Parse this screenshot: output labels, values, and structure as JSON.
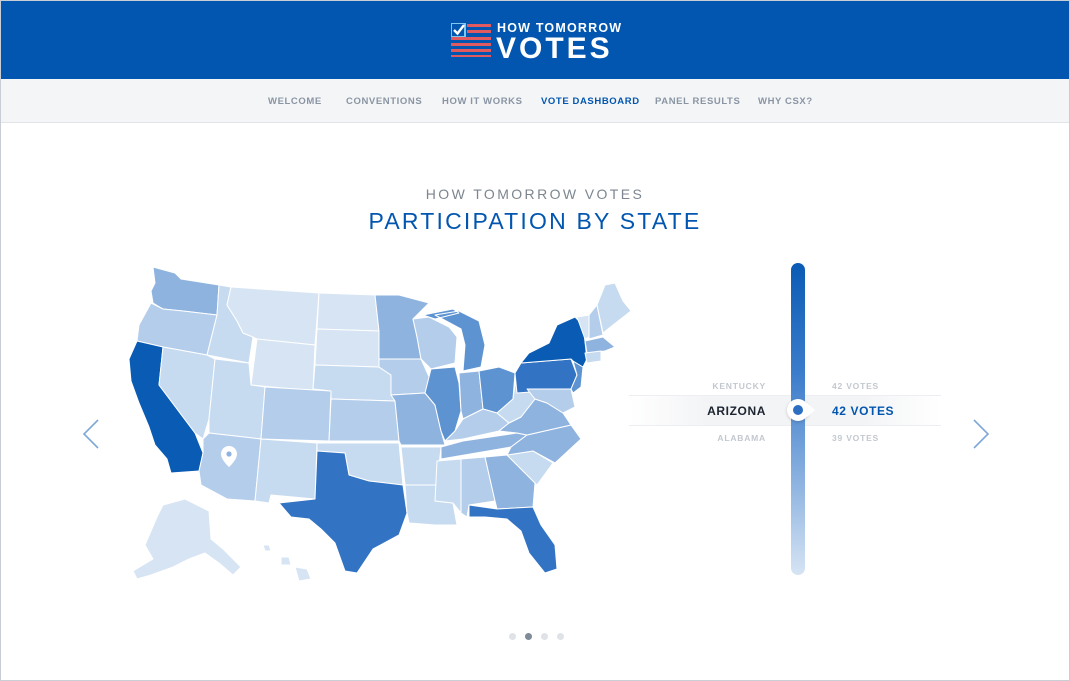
{
  "brand": {
    "small": "HOW TOMORROW",
    "big": "VOTES"
  },
  "nav": {
    "items": [
      {
        "label": "WELCOME",
        "active": false
      },
      {
        "label": "CONVENTIONS",
        "active": false
      },
      {
        "label": "HOW IT WORKS",
        "active": false
      },
      {
        "label": "VOTE DASHBOARD",
        "active": true
      },
      {
        "label": "PANEL RESULTS",
        "active": false
      },
      {
        "label": "WHY CSX?",
        "active": false
      }
    ]
  },
  "page": {
    "kicker": "HOW TOMORROW VOTES",
    "title": "PARTICIPATION BY STATE"
  },
  "slider": {
    "prev": {
      "state": "KENTUCKY",
      "votes": "42 VOTES"
    },
    "selected": {
      "state": "ARIZONA",
      "votes": "42 VOTES"
    },
    "next": {
      "state": "ALABAMA",
      "votes": "39 VOTES"
    }
  },
  "map": {
    "selected_state": "Arizona",
    "colors": {
      "level1": "#d6e4f4",
      "level2": "#b3cdeb",
      "level3": "#8fb3df",
      "level4": "#5e93d2",
      "level5": "#3273c4",
      "level6": "#0a5bb4"
    }
  },
  "pagination": {
    "total": 4,
    "active_index": 1
  },
  "colors": {
    "brand_blue": "#0256b0",
    "nav_bg": "#f4f5f7",
    "text_muted": "#8a95a3"
  }
}
